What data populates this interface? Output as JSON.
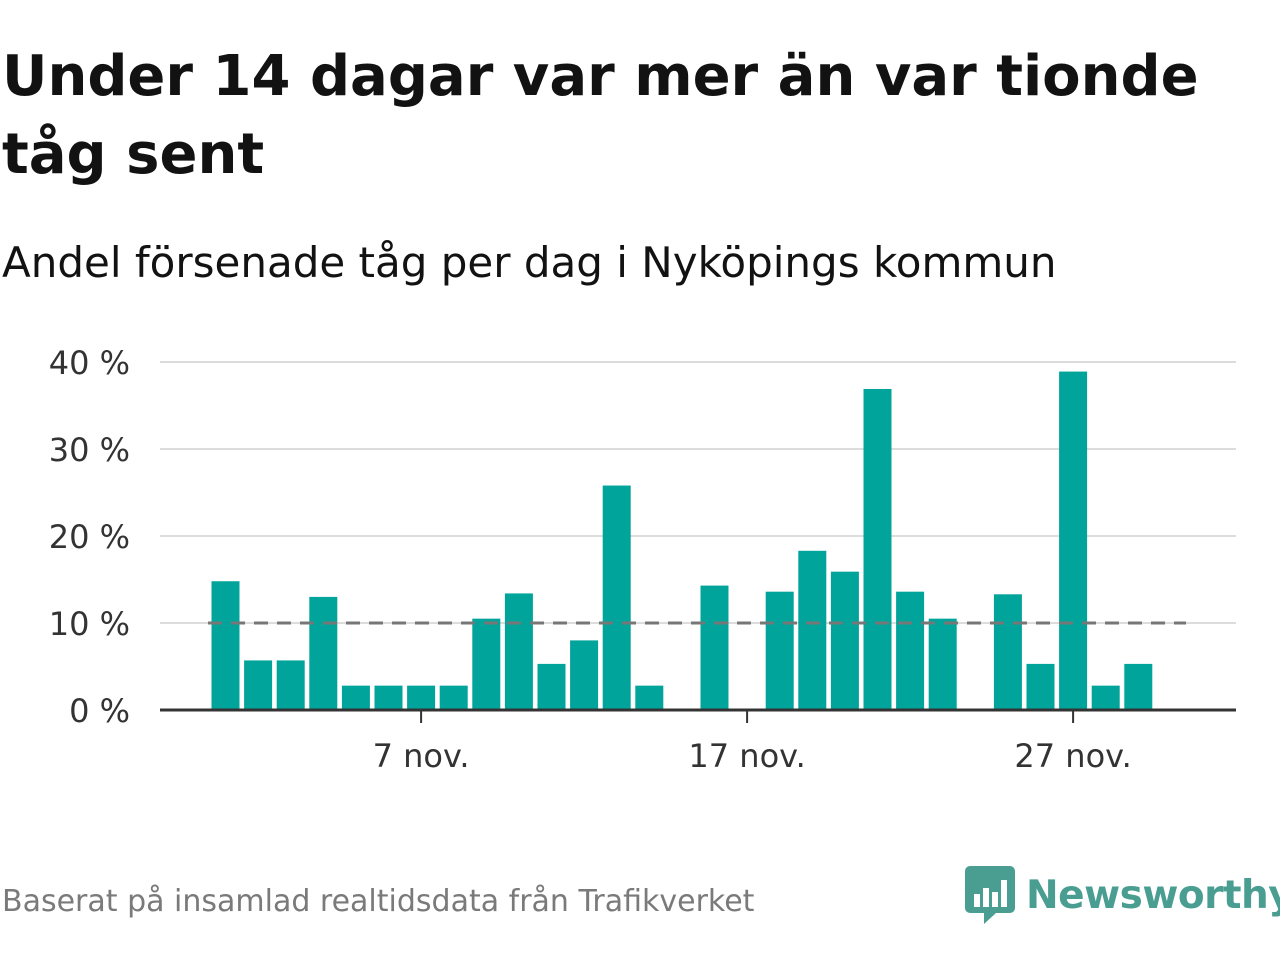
{
  "title": "Under 14 dagar var mer än var tionde tåg sent",
  "subtitle": "Andel försenade tåg per dag i Nyköpings kommun",
  "footer": {
    "source": "Baserat på insamlad realtidsdata från Trafikverket"
  },
  "brand": {
    "name": "Newsworthy",
    "color": "#4a9e91",
    "icon": "newsworthy-chart-bubble-icon"
  },
  "chart_data": {
    "type": "bar",
    "unit": "%",
    "ylim": [
      0,
      40
    ],
    "yticks": [
      {
        "value": 0,
        "label": "0 %"
      },
      {
        "value": 10,
        "label": "10 %"
      },
      {
        "value": 20,
        "label": "20 %"
      },
      {
        "value": 30,
        "label": "30 %"
      },
      {
        "value": 40,
        "label": "40 %"
      }
    ],
    "xticks": [
      {
        "day": 7,
        "label": "7 nov."
      },
      {
        "day": 17,
        "label": "17 nov."
      },
      {
        "day": 27,
        "label": "27 nov."
      }
    ],
    "days": [
      1,
      2,
      3,
      4,
      5,
      6,
      7,
      8,
      9,
      10,
      11,
      12,
      13,
      14,
      15,
      16,
      17,
      18,
      19,
      20,
      21,
      22,
      23,
      24,
      25,
      26,
      27,
      28,
      29,
      30
    ],
    "values": [
      14.8,
      5.7,
      5.7,
      13.0,
      2.8,
      2.8,
      2.8,
      2.8,
      10.5,
      13.4,
      5.3,
      8.0,
      25.8,
      2.8,
      null,
      14.3,
      null,
      13.6,
      18.3,
      15.9,
      36.9,
      13.6,
      10.5,
      null,
      13.3,
      5.3,
      38.9,
      2.8,
      5.3,
      null
    ],
    "reference_line": {
      "value": 10,
      "style": "dashed"
    },
    "colors": {
      "bar": "#00a49a",
      "reference": "#777777",
      "grid": "#dcdcdc",
      "axis": "#333333"
    },
    "grid": true
  }
}
